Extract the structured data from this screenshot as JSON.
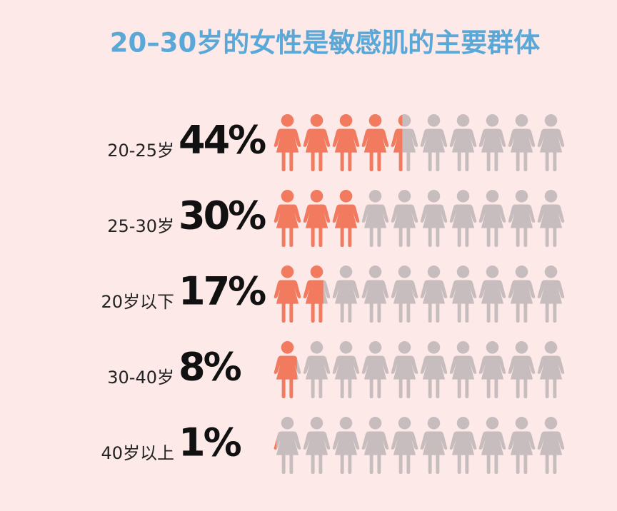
{
  "chart_data": {
    "type": "pictograph",
    "title": "20–30岁的女性是敏感肌的主要群体",
    "categories": [
      "20-25岁",
      "25-30岁",
      "20岁以下",
      "30-40岁",
      "40岁以上"
    ],
    "values": [
      44,
      30,
      17,
      8,
      1
    ],
    "value_labels": [
      "44%",
      "30%",
      "17%",
      "8%",
      "1%"
    ],
    "xlim": [
      0,
      100
    ],
    "color": "#f27a5e",
    "empty_color": "#c8bdbe"
  }
}
